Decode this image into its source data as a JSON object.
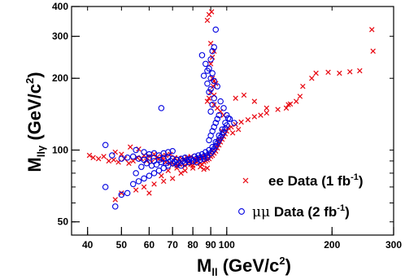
{
  "chart_data": {
    "type": "scatter",
    "title": "",
    "x_scale": "log",
    "y_scale": "log",
    "xlim": [
      36,
      300
    ],
    "ylim": [
      44,
      400
    ],
    "grid": false,
    "legend_position": "bottom-right",
    "xlabel": {
      "main": "M",
      "sub": "ll",
      "rest": " (GeV/c",
      "sup": "2",
      "end": ")"
    },
    "ylabel": {
      "main": "M",
      "sub": "llγ",
      "rest": " (GeV/c",
      "sup": "2",
      "end": ")"
    },
    "x_tick_labels": [
      {
        "value": 40,
        "label": "40"
      },
      {
        "value": 50,
        "label": "50"
      },
      {
        "value": 60,
        "label": "60"
      },
      {
        "value": 70,
        "label": "70"
      },
      {
        "value": 80,
        "label": "80"
      },
      {
        "value": 90,
        "label": "90"
      },
      {
        "value": 100,
        "label": "100"
      },
      {
        "value": 200,
        "label": "200"
      },
      {
        "value": 300,
        "label": "300"
      }
    ],
    "y_tick_labels": [
      {
        "value": 50,
        "label": "50"
      },
      {
        "value": 100,
        "label": "100"
      },
      {
        "value": 200,
        "label": "200"
      },
      {
        "value": 300,
        "label": "300"
      },
      {
        "value": 400,
        "label": "400"
      }
    ],
    "series": [
      {
        "name": "ee Data (1 fb-1)",
        "legend": {
          "prefix": "ee Data (1 fb",
          "sup": "-1",
          "suffix": ")"
        },
        "marker": "cross",
        "color": "#e8000b",
        "points": [
          [
            40.5,
            95
          ],
          [
            41.5,
            93
          ],
          [
            43,
            92
          ],
          [
            44.5,
            94
          ],
          [
            46,
            90
          ],
          [
            47.5,
            91
          ],
          [
            49,
            89
          ],
          [
            51,
            92
          ],
          [
            52.5,
            88
          ],
          [
            54,
            90
          ],
          [
            55.5,
            93
          ],
          [
            50,
            96
          ],
          [
            48,
            98
          ],
          [
            53,
            103
          ],
          [
            56,
            101
          ],
          [
            58,
            95
          ],
          [
            60,
            94
          ],
          [
            62,
            96
          ],
          [
            64,
            92
          ],
          [
            66,
            91
          ],
          [
            67,
            89
          ],
          [
            69,
            88
          ],
          [
            71,
            87
          ],
          [
            72,
            86
          ],
          [
            73,
            88
          ],
          [
            74,
            89
          ],
          [
            75,
            87
          ],
          [
            76,
            86
          ],
          [
            77,
            88
          ],
          [
            78,
            89
          ],
          [
            79,
            87
          ],
          [
            80,
            86
          ],
          [
            81,
            88
          ],
          [
            82,
            89
          ],
          [
            83,
            90
          ],
          [
            84,
            88
          ],
          [
            85,
            87
          ],
          [
            86,
            89
          ],
          [
            87,
            90
          ],
          [
            88,
            91
          ],
          [
            89,
            92
          ],
          [
            90,
            94
          ],
          [
            91,
            95
          ],
          [
            92,
            97
          ],
          [
            93,
            99
          ],
          [
            94,
            102
          ],
          [
            95,
            105
          ],
          [
            96,
            108
          ],
          [
            97,
            111
          ],
          [
            98,
            114
          ],
          [
            99,
            117
          ],
          [
            100,
            120
          ],
          [
            103,
            125
          ],
          [
            106,
            128
          ],
          [
            110,
            131
          ],
          [
            115,
            134
          ],
          [
            120,
            138
          ],
          [
            125,
            140
          ],
          [
            130,
            143
          ],
          [
            140,
            148
          ],
          [
            148,
            150
          ],
          [
            152,
            156
          ],
          [
            158,
            160
          ],
          [
            162,
            168
          ],
          [
            90,
            230
          ],
          [
            91,
            245
          ],
          [
            92,
            260
          ],
          [
            90,
            280
          ],
          [
            88,
            350
          ],
          [
            89,
            370
          ],
          [
            90.5,
            380
          ],
          [
            91,
            200
          ],
          [
            92,
            195
          ],
          [
            93,
            190
          ],
          [
            91.5,
            185
          ],
          [
            90,
            175
          ],
          [
            92,
            170
          ],
          [
            89,
            165
          ],
          [
            88,
            160
          ],
          [
            92,
            155
          ],
          [
            94,
            150
          ],
          [
            96,
            145
          ],
          [
            98,
            140
          ],
          [
            106,
            165
          ],
          [
            112,
            170
          ],
          [
            120,
            160
          ],
          [
            130,
            150
          ],
          [
            150,
            155
          ],
          [
            165,
            185
          ],
          [
            175,
            200
          ],
          [
            180,
            210
          ],
          [
            195,
            212
          ],
          [
            210,
            210
          ],
          [
            225,
            213
          ],
          [
            240,
            215
          ],
          [
            260,
            320
          ],
          [
            262,
            260
          ],
          [
            58,
            70
          ],
          [
            62,
            72
          ],
          [
            66,
            74
          ],
          [
            70,
            76
          ],
          [
            74,
            80
          ],
          [
            50,
            66
          ],
          [
            48,
            62
          ],
          [
            55,
            68
          ],
          [
            60,
            66
          ],
          [
            65,
            78
          ],
          [
            68,
            82
          ],
          [
            72,
            84
          ],
          [
            76,
            82
          ],
          [
            80,
            84
          ],
          [
            84,
            85
          ],
          [
            86,
            83
          ],
          [
            88,
            84
          ],
          [
            57,
            92
          ],
          [
            59,
            90
          ],
          [
            61,
            89
          ],
          [
            63,
            93
          ],
          [
            65,
            94
          ],
          [
            67,
            95
          ],
          [
            69,
            96
          ],
          [
            71,
            93
          ],
          [
            73,
            92
          ],
          [
            75,
            91
          ],
          [
            77,
            93
          ],
          [
            79,
            94
          ],
          [
            81,
            92
          ],
          [
            83,
            93
          ],
          [
            85,
            94
          ],
          [
            87,
            95
          ],
          [
            89,
            96
          ],
          [
            91,
            99
          ],
          [
            93,
            103
          ],
          [
            95,
            110
          ],
          [
            97,
            120
          ],
          [
            101,
            124
          ],
          [
            104,
            118
          ],
          [
            108,
            122
          ]
        ]
      },
      {
        "name": "μμ Data (2 fb-1)",
        "legend": {
          "prefix": "μμ",
          "rest": " Data (2 fb",
          "sup": "-1",
          "suffix": ")"
        },
        "marker": "circle",
        "color": "#0000e0",
        "points": [
          [
            45,
            105
          ],
          [
            47,
            95
          ],
          [
            50,
            92
          ],
          [
            52,
            93
          ],
          [
            54,
            94
          ],
          [
            56,
            92
          ],
          [
            58,
            91
          ],
          [
            60,
            93
          ],
          [
            62,
            90
          ],
          [
            64,
            91
          ],
          [
            66,
            92
          ],
          [
            68,
            93
          ],
          [
            70,
            92
          ],
          [
            72,
            91
          ],
          [
            74,
            92
          ],
          [
            76,
            93
          ],
          [
            78,
            91
          ],
          [
            80,
            90
          ],
          [
            82,
            92
          ],
          [
            84,
            93
          ],
          [
            86,
            94
          ],
          [
            88,
            95
          ],
          [
            90,
            97
          ],
          [
            91,
            99
          ],
          [
            92,
            101
          ],
          [
            93,
            104
          ],
          [
            94,
            107
          ],
          [
            95,
            110
          ],
          [
            96,
            113
          ],
          [
            97,
            116
          ],
          [
            98,
            119
          ],
          [
            99,
            123
          ],
          [
            100,
            127
          ],
          [
            89,
            110
          ],
          [
            90,
            115
          ],
          [
            91,
            120
          ],
          [
            92,
            125
          ],
          [
            93,
            130
          ],
          [
            94,
            135
          ],
          [
            95,
            140
          ],
          [
            90,
            145
          ],
          [
            91,
            155
          ],
          [
            92,
            165
          ],
          [
            89,
            175
          ],
          [
            90,
            180
          ],
          [
            88,
            190
          ],
          [
            90,
            200
          ],
          [
            91,
            210
          ],
          [
            89,
            220
          ],
          [
            90,
            240
          ],
          [
            91,
            260
          ],
          [
            92,
            270
          ],
          [
            93,
            320
          ],
          [
            65,
            150
          ],
          [
            85,
            250
          ],
          [
            87,
            230
          ],
          [
            88,
            215
          ],
          [
            86,
            205
          ],
          [
            92,
            195
          ],
          [
            94,
            185
          ],
          [
            96,
            160
          ],
          [
            98,
            150
          ],
          [
            100,
            140
          ],
          [
            102,
            135
          ],
          [
            105,
            130
          ],
          [
            48,
            58
          ],
          [
            50,
            65
          ],
          [
            52,
            66
          ],
          [
            54,
            72
          ],
          [
            56,
            74
          ],
          [
            58,
            76
          ],
          [
            60,
            78
          ],
          [
            62,
            80
          ],
          [
            64,
            82
          ],
          [
            66,
            84
          ],
          [
            68,
            86
          ],
          [
            70,
            88
          ],
          [
            72,
            87
          ],
          [
            74,
            86
          ],
          [
            76,
            88
          ],
          [
            78,
            89
          ],
          [
            80,
            90
          ],
          [
            82,
            89
          ],
          [
            84,
            91
          ],
          [
            86,
            92
          ],
          [
            88,
            93
          ],
          [
            45,
            70
          ],
          [
            55,
            80
          ],
          [
            57,
            85
          ],
          [
            59,
            88
          ],
          [
            61,
            86
          ],
          [
            63,
            87
          ],
          [
            65,
            89
          ],
          [
            67,
            88
          ],
          [
            69,
            90
          ],
          [
            71,
            89
          ],
          [
            73,
            88
          ],
          [
            75,
            90
          ],
          [
            77,
            91
          ],
          [
            79,
            92
          ],
          [
            81,
            94
          ],
          [
            83,
            95
          ],
          [
            85,
            96
          ],
          [
            87,
            98
          ],
          [
            89,
            100
          ],
          [
            91,
            103
          ],
          [
            93,
            108
          ],
          [
            95,
            115
          ],
          [
            97,
            122
          ],
          [
            99,
            130
          ],
          [
            101,
            136
          ],
          [
            55,
            100
          ],
          [
            58,
            98
          ],
          [
            60,
            96
          ],
          [
            62,
            97
          ],
          [
            64,
            95
          ],
          [
            66,
            97
          ],
          [
            68,
            98
          ],
          [
            70,
            99
          ]
        ]
      }
    ]
  }
}
